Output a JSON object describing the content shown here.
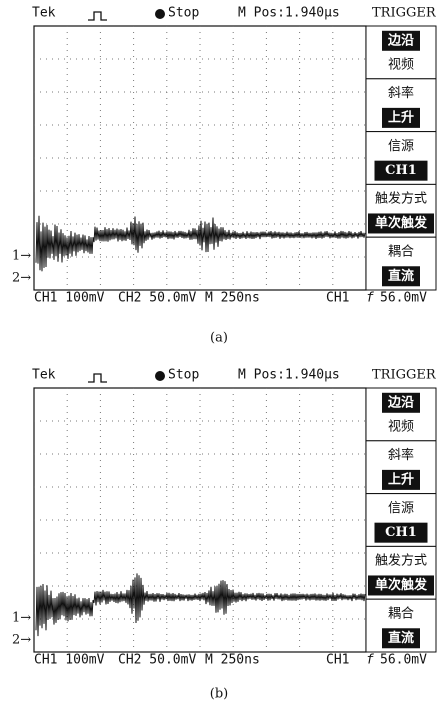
{
  "panels": [
    {
      "header": {
        "brand": "Tek",
        "status": "Stop",
        "position": "M Pos:1.940µs",
        "menu_title": "TRIGGER"
      },
      "menu": [
        {
          "label": "边沿",
          "value": "视频",
          "selected": 0
        },
        {
          "label": "斜率",
          "value": "上升",
          "selected": 1
        },
        {
          "label": "信源",
          "value": "CH1",
          "selected": 1
        },
        {
          "label": "触发方式",
          "value": "单次触发",
          "selected": 1
        },
        {
          "label": "耦合",
          "value": "直流",
          "selected": 1
        }
      ],
      "markers": [
        "1→",
        "2→"
      ],
      "footer": [
        "CH1 100mV",
        "CH2 50.0mV",
        "M 250ns",
        "CH1",
        "f",
        "56.0mV"
      ],
      "caption": "(a)"
    },
    {
      "header": {
        "brand": "Tek",
        "status": "Stop",
        "position": "M Pos:1.940µs",
        "menu_title": "TRIGGER"
      },
      "menu": [
        {
          "label": "边沿",
          "value": "视频",
          "selected": 0
        },
        {
          "label": "斜率",
          "value": "上升",
          "selected": 1
        },
        {
          "label": "信源",
          "value": "CH1",
          "selected": 1
        },
        {
          "label": "触发方式",
          "value": "单次触发",
          "selected": 1
        },
        {
          "label": "耦合",
          "value": "直流",
          "selected": 1
        }
      ],
      "markers": [
        "1→",
        "2→"
      ],
      "footer": [
        "CH1 100mV",
        "CH2 50.0mV",
        "M 250ns",
        "CH1",
        "f",
        "56.0mV"
      ],
      "caption": "(b)"
    }
  ]
}
